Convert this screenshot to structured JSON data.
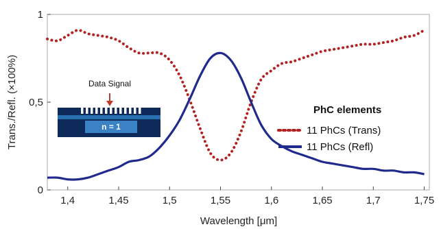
{
  "chart_data": {
    "type": "line",
    "xlabel": "Wavelength [μm]",
    "ylabel": "Trans./Refl. (×100%)",
    "xlim": [
      1.38,
      1.755
    ],
    "ylim": [
      0,
      1
    ],
    "x_ticks": [
      "1,4",
      "1,45",
      "1,5",
      "1,55",
      "1,6",
      "1,65",
      "1,7",
      "1,75"
    ],
    "x_tick_values": [
      1.4,
      1.45,
      1.5,
      1.55,
      1.6,
      1.65,
      1.7,
      1.75
    ],
    "y_ticks": [
      "0",
      "0,5",
      "1"
    ],
    "y_tick_values": [
      0,
      0.5,
      1
    ],
    "grid": false,
    "legend": {
      "title": "PhC elements",
      "position": "right",
      "entries": [
        "11 PhCs (Trans)",
        "11 PhCs (Refl)"
      ]
    },
    "series": [
      {
        "name": "11 PhCs (Trans)",
        "style": "dotted",
        "color": "#b22222",
        "x": [
          1.38,
          1.39,
          1.4,
          1.41,
          1.42,
          1.43,
          1.44,
          1.45,
          1.46,
          1.47,
          1.48,
          1.49,
          1.5,
          1.51,
          1.52,
          1.53,
          1.54,
          1.55,
          1.56,
          1.57,
          1.58,
          1.59,
          1.6,
          1.61,
          1.62,
          1.63,
          1.64,
          1.65,
          1.66,
          1.67,
          1.68,
          1.69,
          1.7,
          1.71,
          1.72,
          1.73,
          1.74,
          1.75
        ],
        "y": [
          0.86,
          0.85,
          0.88,
          0.91,
          0.89,
          0.88,
          0.87,
          0.85,
          0.81,
          0.78,
          0.78,
          0.78,
          0.74,
          0.65,
          0.51,
          0.35,
          0.21,
          0.17,
          0.21,
          0.33,
          0.5,
          0.63,
          0.68,
          0.72,
          0.73,
          0.75,
          0.77,
          0.79,
          0.8,
          0.81,
          0.82,
          0.83,
          0.83,
          0.84,
          0.85,
          0.87,
          0.88,
          0.91
        ]
      },
      {
        "name": "11 PhCs (Refl)",
        "style": "solid",
        "color": "#1f2a8c",
        "x": [
          1.38,
          1.39,
          1.4,
          1.41,
          1.42,
          1.43,
          1.44,
          1.45,
          1.46,
          1.47,
          1.48,
          1.49,
          1.5,
          1.51,
          1.52,
          1.53,
          1.54,
          1.55,
          1.56,
          1.57,
          1.58,
          1.59,
          1.6,
          1.61,
          1.62,
          1.63,
          1.64,
          1.65,
          1.66,
          1.67,
          1.68,
          1.69,
          1.7,
          1.71,
          1.72,
          1.73,
          1.74,
          1.75
        ],
        "y": [
          0.07,
          0.07,
          0.06,
          0.06,
          0.07,
          0.09,
          0.11,
          0.13,
          0.16,
          0.17,
          0.19,
          0.24,
          0.31,
          0.4,
          0.52,
          0.65,
          0.75,
          0.78,
          0.74,
          0.64,
          0.5,
          0.37,
          0.29,
          0.25,
          0.22,
          0.2,
          0.18,
          0.16,
          0.15,
          0.14,
          0.13,
          0.12,
          0.12,
          0.11,
          0.11,
          0.1,
          0.1,
          0.09
        ]
      }
    ],
    "annotations": {
      "inset_label": "Data Signal",
      "inset_medium": "n = 1"
    }
  },
  "colors": {
    "trans": "#b22222",
    "refl": "#1f2a8c",
    "inset_dark": "#0d2a5a",
    "inset_light": "#3a82c4",
    "arrow": "#c0392b"
  }
}
